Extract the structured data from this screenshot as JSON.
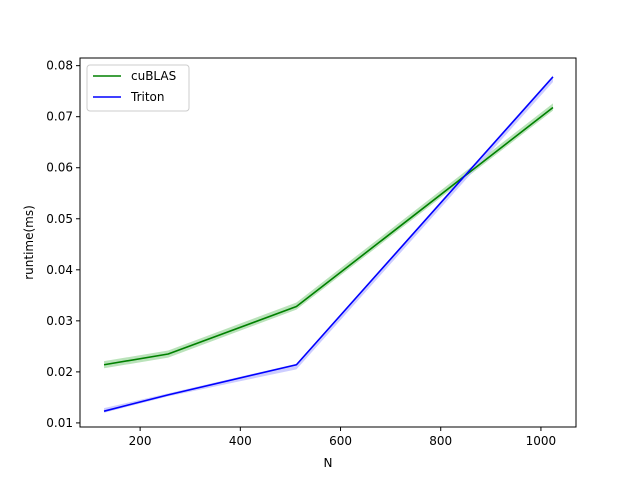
{
  "chart_data": {
    "type": "line",
    "title": "",
    "xlabel": "N",
    "ylabel": "runtime(ms)",
    "xlim": [
      80,
      1070
    ],
    "ylim": [
      0.0092,
      0.0815
    ],
    "xticks": [
      200,
      400,
      600,
      800,
      1000
    ],
    "xtick_labels": [
      "200",
      "400",
      "600",
      "800",
      "1000"
    ],
    "yticks": [
      0.01,
      0.02,
      0.03,
      0.04,
      0.05,
      0.06,
      0.07,
      0.08
    ],
    "ytick_labels": [
      "0.01",
      "0.02",
      "0.03",
      "0.04",
      "0.05",
      "0.06",
      "0.07",
      "0.08"
    ],
    "grid": false,
    "legend_position": "upper-left",
    "x": [
      128,
      256,
      512,
      1024
    ],
    "series": [
      {
        "name": "cuBLAS",
        "color": "#008000",
        "band_color": "#b2e0b2",
        "values": [
          0.0214,
          0.0235,
          0.0328,
          0.0718
        ],
        "lower": [
          0.0207,
          0.0228,
          0.0322,
          0.0712
        ],
        "upper": [
          0.0221,
          0.0242,
          0.0336,
          0.0726
        ]
      },
      {
        "name": "Triton",
        "color": "#0000ff",
        "band_color": "#c8c8ff",
        "values": [
          0.0123,
          0.0155,
          0.0214,
          0.0778
        ],
        "lower": [
          0.012,
          0.0152,
          0.0205,
          0.0768
        ],
        "upper": [
          0.0129,
          0.0158,
          0.0216,
          0.0781
        ]
      }
    ]
  }
}
